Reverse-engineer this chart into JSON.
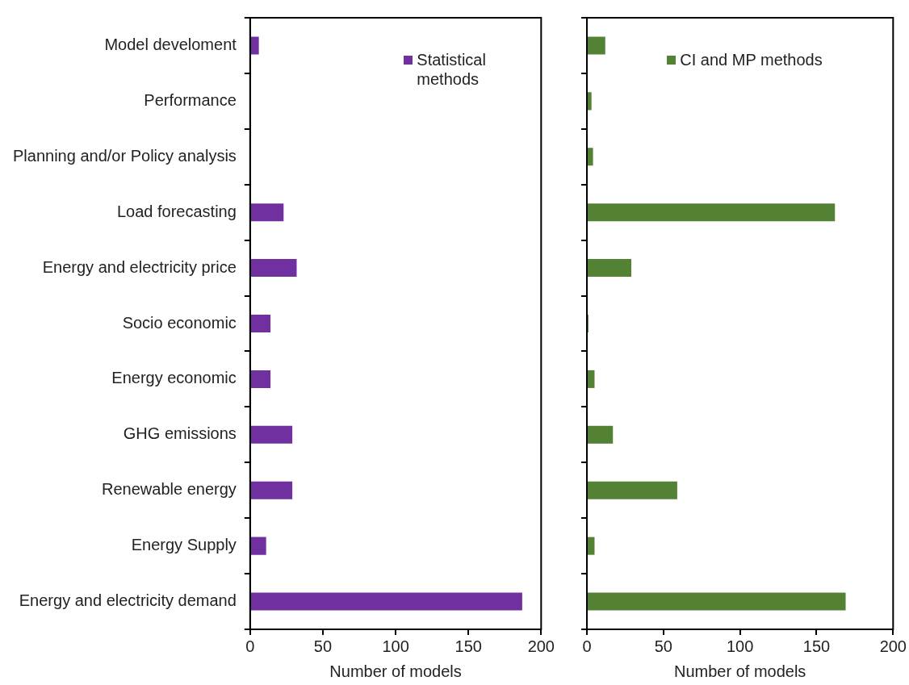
{
  "chart_data": [
    {
      "type": "bar",
      "orientation": "horizontal",
      "categories": [
        "Model develoment",
        "Performance",
        "Planning and/or Policy analysis",
        "Load forecasting",
        "Energy and electricity price",
        "Socio economic",
        "Energy economic",
        "GHG emissions",
        "Renewable energy",
        "Energy Supply",
        "Energy and electricity demand"
      ],
      "series": [
        {
          "name": "Statistical methods",
          "color": "#7030a0",
          "values": [
            6,
            0,
            0,
            23,
            32,
            14,
            14,
            29,
            29,
            11,
            187
          ]
        }
      ],
      "xlim": [
        0,
        200
      ],
      "xticks": [
        0,
        50,
        100,
        150,
        200
      ],
      "xlabel": "Number of models",
      "legend": "top right",
      "grid": false
    },
    {
      "type": "bar",
      "orientation": "horizontal",
      "categories": [
        null,
        null,
        null,
        null,
        null,
        null,
        null,
        null,
        null,
        null,
        null
      ],
      "series": [
        {
          "name": "CI and MP methods",
          "color": "#548235",
          "values": [
            12,
            3,
            4,
            162,
            29,
            1,
            5,
            17,
            59,
            5,
            169
          ]
        }
      ],
      "xlim": [
        0,
        200
      ],
      "xticks": [
        0,
        50,
        100,
        150,
        200
      ],
      "xlabel": "Number of models",
      "legend": "top right",
      "grid": false
    }
  ]
}
